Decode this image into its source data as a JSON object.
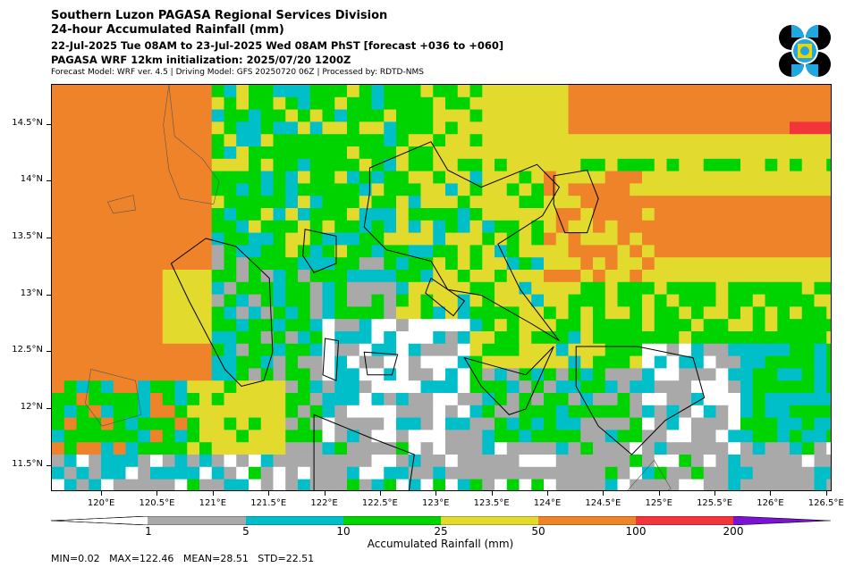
{
  "header": {
    "line1": "Southern Luzon PAGASA Regional Services Division",
    "line2": "24-hour Accumulated Rainfall (mm)",
    "line3": "22-Jul-2025 Tue 08AM to 23-Jul-2025 Wed 08AM PhST [forecast +036 to +060]",
    "line4": "PAGASA WRF 12km initialization: 2025/07/20 1200Z",
    "line5": "Forecast Model: WRF ver. 4.5 | Driving Model: GFS 20250720 06Z | Processed by: RDTD-NMS"
  },
  "map": {
    "lon_range": [
      119.55,
      126.55
    ],
    "lat_range": [
      11.27,
      14.85
    ],
    "lat_ticks": [
      "14.5°N",
      "14°N",
      "13.5°N",
      "13°N",
      "12.5°N",
      "12°N",
      "11.5°N"
    ],
    "lat_values": [
      14.5,
      14.0,
      13.5,
      13.0,
      12.5,
      12.0,
      11.5
    ],
    "lon_ticks": [
      "120°E",
      "120.5°E",
      "121°E",
      "121.5°E",
      "122°E",
      "122.5°E",
      "123°E",
      "123.5°E",
      "124°E",
      "124.5°E",
      "125°E",
      "125.5°E",
      "126°E",
      "126.5°E"
    ],
    "lon_values": [
      120.0,
      120.5,
      121.0,
      121.5,
      122.0,
      122.5,
      123.0,
      123.5,
      124.0,
      124.5,
      125.0,
      125.5,
      126.0,
      126.5
    ],
    "rainfall_classes": [
      {
        "range": "<1",
        "color": "#ffffff"
      },
      {
        "range": "1-5",
        "color": "#a9a9a9"
      },
      {
        "range": "5-10",
        "color": "#00bfc8"
      },
      {
        "range": "10-25",
        "color": "#00d400"
      },
      {
        "range": "25-50",
        "color": "#e3da2e"
      },
      {
        "range": "50-100",
        "color": "#ef8329"
      },
      {
        "range": "100-200",
        "color": "#f2353a"
      },
      {
        "range": ">200",
        "color": "#7b12d6"
      }
    ]
  },
  "colorbar": {
    "labels": [
      "1",
      "5",
      "10",
      "25",
      "50",
      "100",
      "200"
    ],
    "title": "Accumulated Rainfall (mm)"
  },
  "stats": "MIN=0.02   MAX=122.46   MEAN=28.51   STD=22.51",
  "logo": {
    "icon": "pagasa-logo-icon",
    "colors": [
      "#000000",
      "#1ea7e1",
      "#f2d200"
    ]
  }
}
